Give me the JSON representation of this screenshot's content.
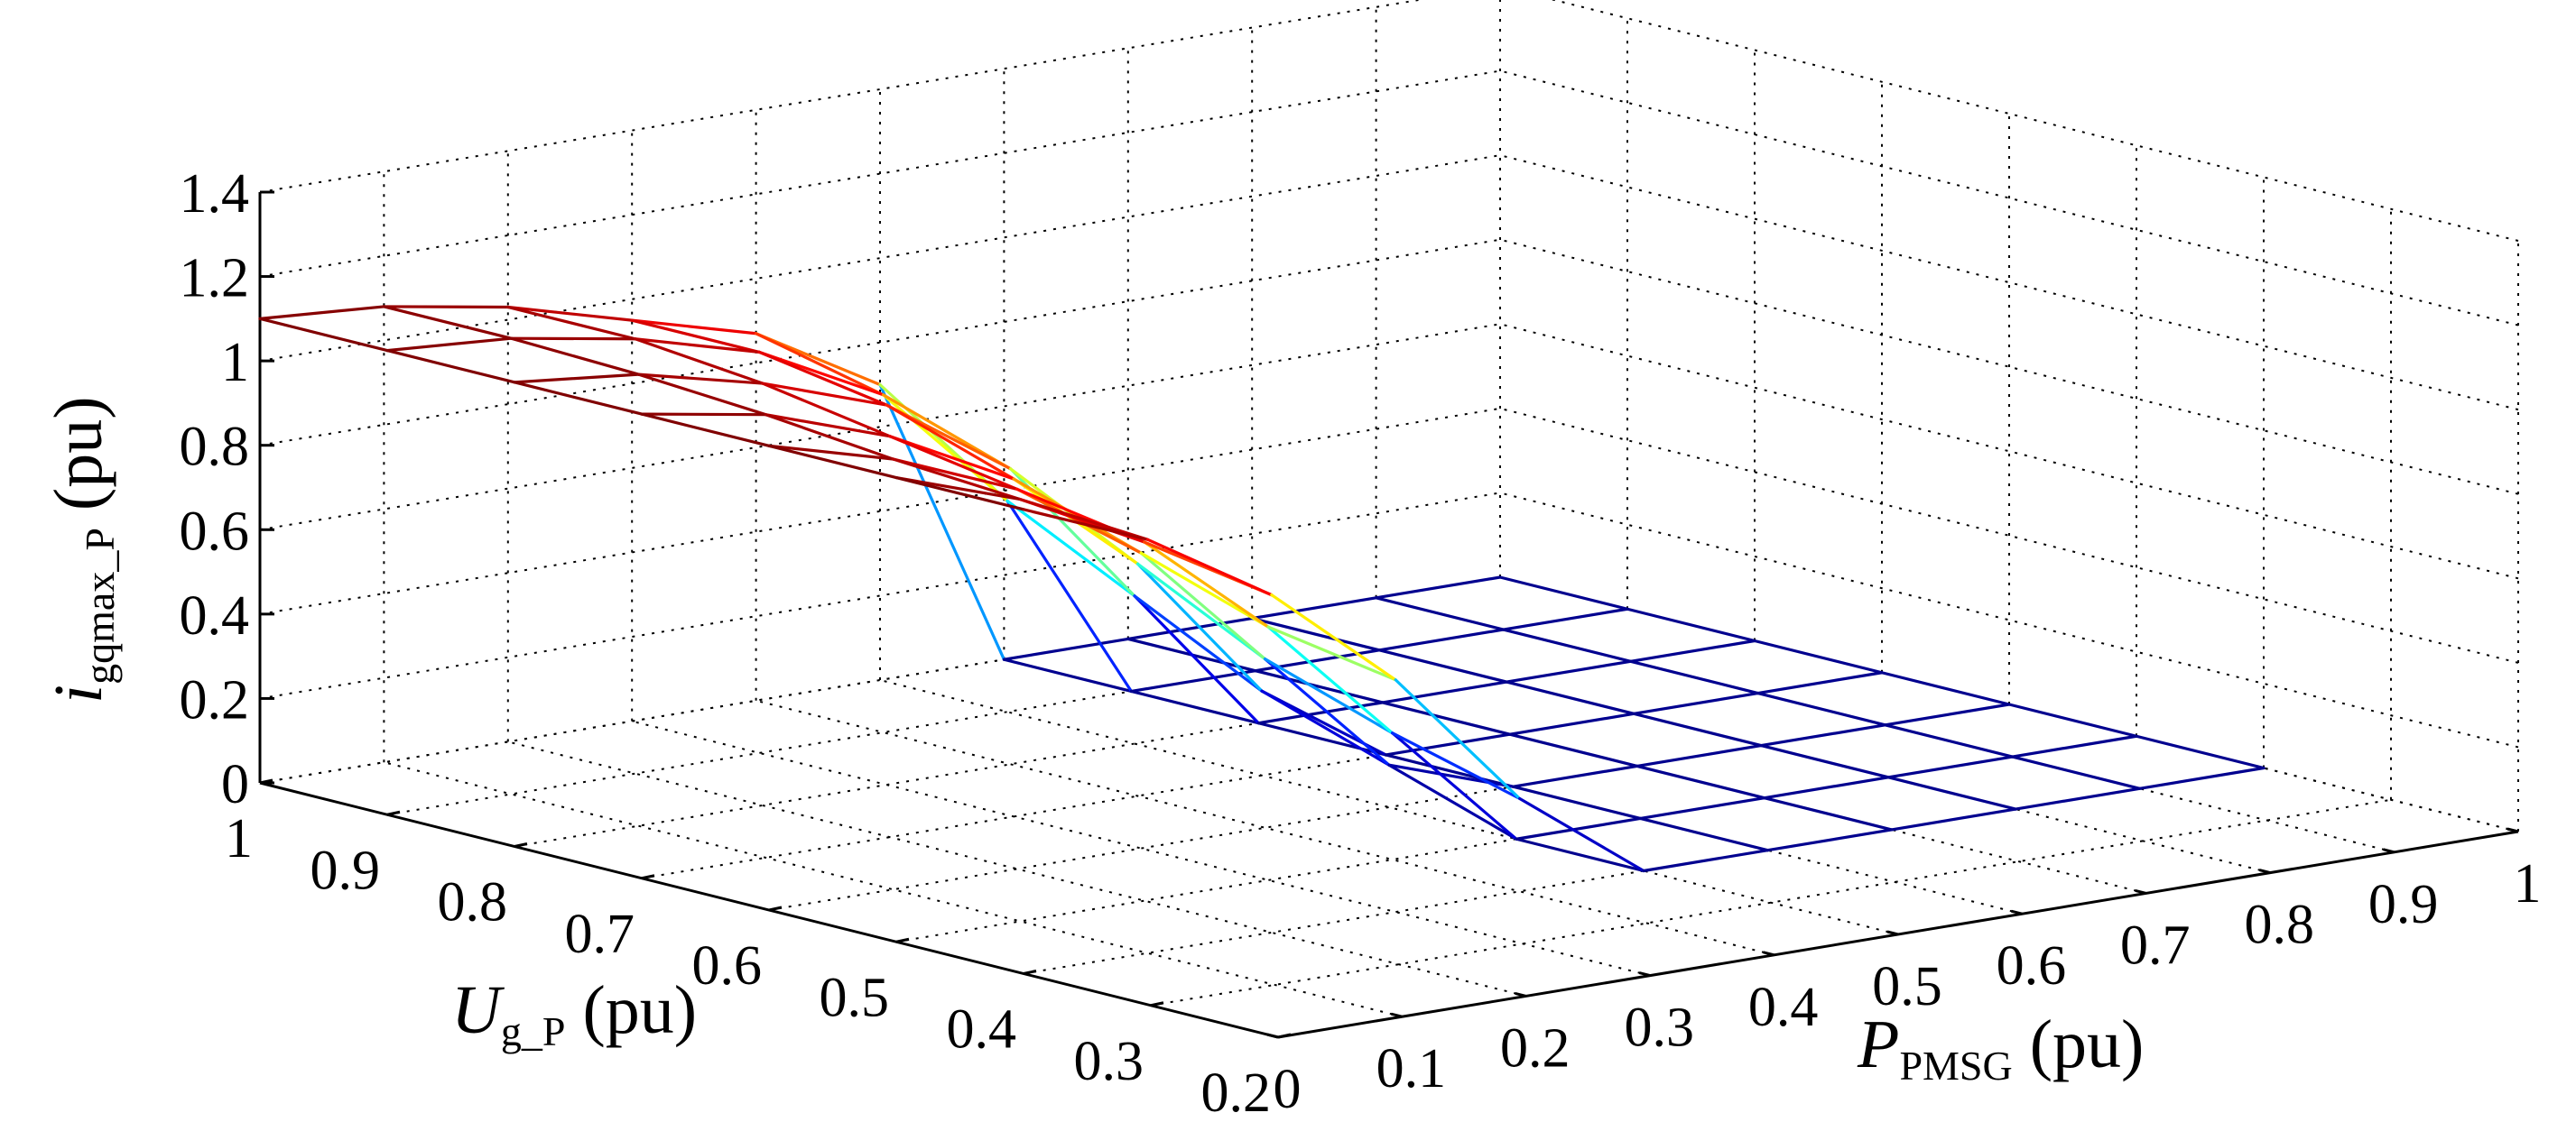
{
  "chart_data": {
    "type": "surface",
    "title": "",
    "zlabel": {
      "main": "i",
      "sub": "gqmax_P",
      "unit": " (pu)"
    },
    "ylabel": {
      "main": "U",
      "sub": "g_P",
      "unit": " (pu)"
    },
    "xlabel": {
      "main": "P",
      "sub": "PMSG",
      "unit": " (pu)"
    },
    "p_ticks": [
      "0",
      "0.1",
      "0.2",
      "0.3",
      "0.4",
      "0.5",
      "0.6",
      "0.7",
      "0.8",
      "0.9",
      "1"
    ],
    "u_ticks": [
      "1",
      "0.9",
      "0.8",
      "0.7",
      "0.6",
      "0.5",
      "0.4",
      "0.3",
      "0.2"
    ],
    "z_ticks": [
      "0",
      "0.2",
      "0.4",
      "0.6",
      "0.8",
      "1",
      "1.2",
      "1.4"
    ],
    "p_range": [
      0,
      1
    ],
    "u_range": [
      0.2,
      1
    ],
    "z_range": [
      0,
      1.4
    ],
    "grid": true,
    "colormap": [
      "#00008f",
      "#0000ff",
      "#00ffff",
      "#ffff00",
      "#ff0000",
      "#800000"
    ],
    "p_grid": [
      0,
      0.1,
      0.2,
      0.3,
      0.4,
      0.5,
      0.6,
      0.7,
      0.8,
      0.9,
      1.0
    ],
    "u_grid": [
      1.0,
      0.9,
      0.8,
      0.7,
      0.6,
      0.5,
      0.4
    ],
    "z_values": [
      [
        1.1,
        1.08,
        1.03,
        0.95,
        0.87,
        0.7,
        0.0,
        0.0,
        0.0,
        0.0,
        0.0
      ],
      [
        1.1,
        1.08,
        1.03,
        0.95,
        0.8,
        0.5,
        0.0,
        0.0,
        0.0,
        0.0,
        0.0
      ],
      [
        1.1,
        1.07,
        1.0,
        0.9,
        0.7,
        0.35,
        0.0,
        0.0,
        0.0,
        0.0,
        0.0
      ],
      [
        1.1,
        1.05,
        0.95,
        0.8,
        0.55,
        0.2,
        0.0,
        0.0,
        0.0,
        0.0,
        0.0
      ],
      [
        1.1,
        1.02,
        0.9,
        0.7,
        0.4,
        0.1,
        0.0,
        0.0,
        0.0,
        0.0,
        0.0
      ],
      [
        1.1,
        1.0,
        0.85,
        0.6,
        0.3,
        0.0,
        0.0,
        0.0,
        0.0,
        0.0,
        0.0
      ],
      [
        1.1,
        0.98,
        0.8,
        0.55,
        0.22,
        0.0,
        0.0,
        0.0,
        0.0,
        0.0,
        0.0
      ]
    ]
  }
}
